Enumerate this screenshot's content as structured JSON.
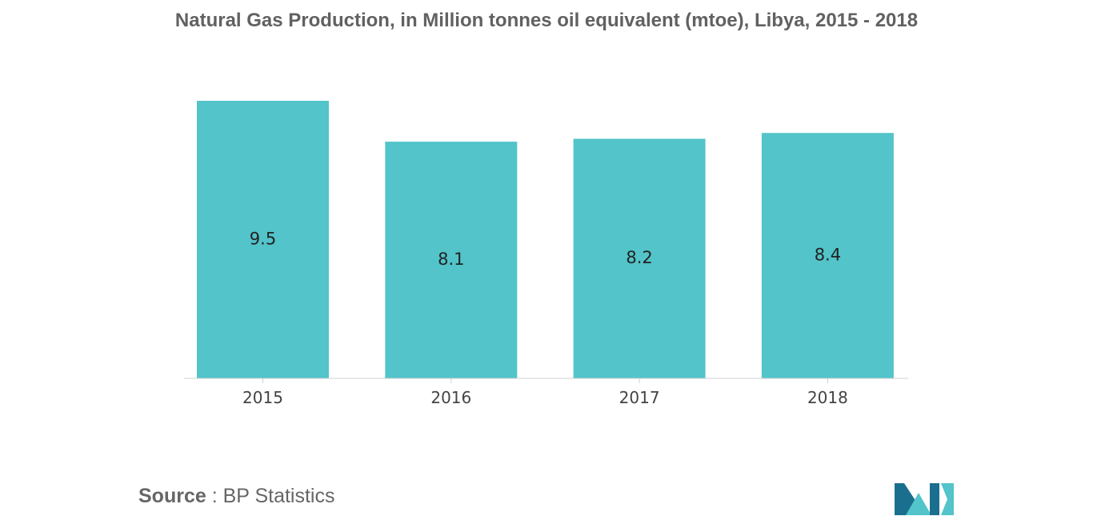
{
  "chart_data": {
    "type": "bar",
    "title": "Natural Gas Production, in Million tonnes oil equivalent (mtoe), Libya, 2015 - 2018",
    "categories": [
      "2015",
      "2016",
      "2017",
      "2018"
    ],
    "values": [
      9.5,
      8.1,
      8.2,
      8.4
    ],
    "value_labels": [
      "9.5",
      "8.1",
      "8.2",
      "8.4"
    ],
    "xlabel": "",
    "ylabel": "",
    "ylim": [
      0,
      9.5
    ],
    "grid": false,
    "legend": "none",
    "bar_color": "#52C4CA"
  },
  "source": {
    "key": "Source",
    "separator": " : ",
    "value": "BP Statistics"
  },
  "logo": {
    "name": "mordor-intelligence-logo",
    "color_dark": "#1B6F8E",
    "color_light": "#52C4CA"
  }
}
